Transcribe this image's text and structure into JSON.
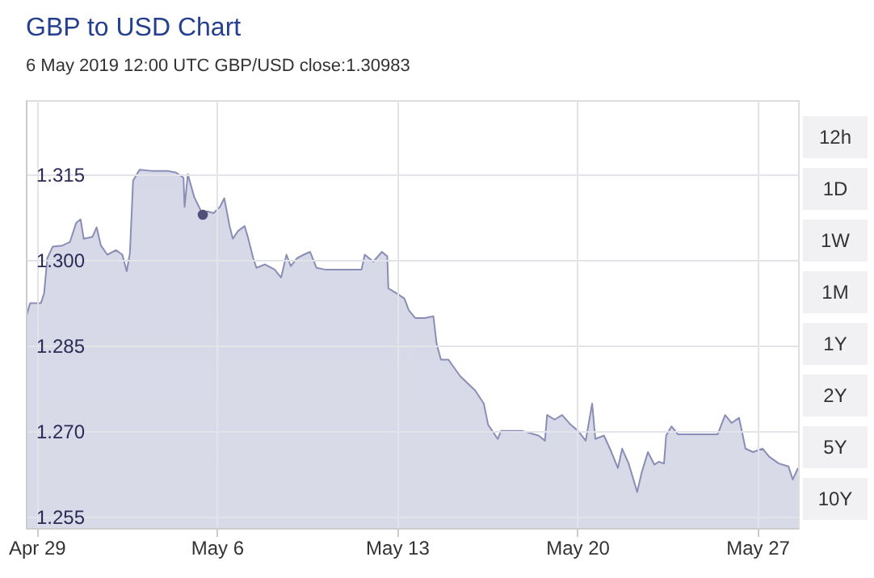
{
  "chart_data": {
    "type": "area",
    "title": "GBP to USD Chart",
    "subtitle": "6 May 2019 12:00 UTC    GBP/USD close:1.30983",
    "annotations": [
      "12h",
      "1D",
      "1W",
      "1M",
      "1Y",
      "2Y",
      "5Y",
      "10Y"
    ],
    "xlim": [
      "2019-04-28T14:00",
      "2019-05-28T14:00"
    ],
    "xticks": [
      {
        "value": "2019-04-29",
        "label": "Apr 29"
      },
      {
        "value": "2019-05-06",
        "label": "May 6"
      },
      {
        "value": "2019-05-13",
        "label": "May 13"
      },
      {
        "value": "2019-05-20",
        "label": "May 20"
      },
      {
        "value": "2019-05-27",
        "label": "May 27"
      }
    ],
    "ylim": [
      1.253,
      1.328
    ],
    "yticks": [
      1.255,
      {
        "value": 1.27,
        "label": "1.270"
      },
      1.285,
      {
        "value": 1.3,
        "label": "1.300"
      },
      1.315
    ],
    "grid": true,
    "series": [
      {
        "color": "#8a8db5",
        "x": [
          "2019-04-28T14:00",
          "2019-04-28T18:00",
          "2019-04-29T04:00",
          "2019-04-29T07:00",
          "2019-04-29T10:00",
          "2019-04-29T15:00",
          "2019-04-30T00:00",
          "2019-04-30T07:00",
          "2019-04-30T13:00",
          "2019-04-30T17:00",
          "2019-04-30T20:00",
          "2019-05-01T04:00",
          "2019-05-01T08:00",
          "2019-05-01T12:00",
          "2019-05-01T18:00",
          "2019-05-02T02:00",
          "2019-05-02T08:00",
          "2019-05-02T12:00",
          "2019-05-02T15:00",
          "2019-05-02T18:00",
          "2019-05-03T00:00",
          "2019-05-03T11:00",
          "2019-05-04T02:00",
          "2019-05-04T10:00",
          "2019-05-04T17:00",
          "2019-05-04T18:00",
          "2019-05-04T21:00",
          "2019-05-05T03:00",
          "2019-05-05T11:00",
          "2019-05-05T15:00",
          "2019-05-05T21:00",
          "2019-05-06T03:00",
          "2019-05-06T07:00",
          "2019-05-06T12:00",
          "2019-05-06T15:00",
          "2019-05-06T20:00",
          "2019-05-07T02:00",
          "2019-05-07T05:00",
          "2019-05-07T10:00",
          "2019-05-07T13:00",
          "2019-05-07T21:00",
          "2019-05-08T06:00",
          "2019-05-08T12:00",
          "2019-05-08T17:00",
          "2019-05-08T21:00",
          "2019-05-09T03:00",
          "2019-05-09T09:00",
          "2019-05-09T15:00",
          "2019-05-09T21:00",
          "2019-05-10T05:00",
          "2019-05-10T20:00",
          "2019-05-11T15:00",
          "2019-05-11T18:00",
          "2019-05-12T02:00",
          "2019-05-12T10:00",
          "2019-05-12T15:00",
          "2019-05-12T16:00",
          "2019-05-13T00:00",
          "2019-05-13T07:00",
          "2019-05-13T11:00",
          "2019-05-13T17:00",
          "2019-05-14T02:00",
          "2019-05-14T10:00",
          "2019-05-14T13:00",
          "2019-05-14T17:00",
          "2019-05-15T00:00",
          "2019-05-15T11:00",
          "2019-05-16T01:00",
          "2019-05-16T09:00",
          "2019-05-16T13:00",
          "2019-05-16T22:00",
          "2019-05-17T01:00",
          "2019-05-17T21:00",
          "2019-05-18T12:00",
          "2019-05-18T18:00",
          "2019-05-18T20:00",
          "2019-05-19T03:00",
          "2019-05-19T10:00",
          "2019-05-19T18:00",
          "2019-05-20T01:00",
          "2019-05-20T08:00",
          "2019-05-20T14:00",
          "2019-05-20T17:00",
          "2019-05-21T01:00",
          "2019-05-21T08:00",
          "2019-05-21T14:00",
          "2019-05-21T18:00",
          "2019-05-22T00:00",
          "2019-05-22T08:00",
          "2019-05-22T12:00",
          "2019-05-22T18:00",
          "2019-05-23T00:00",
          "2019-05-23T04:00",
          "2019-05-23T09:00",
          "2019-05-23T11:00",
          "2019-05-23T16:00",
          "2019-05-23T22:00",
          "2019-05-25T11:00",
          "2019-05-25T18:00",
          "2019-05-26T00:00",
          "2019-05-26T07:00",
          "2019-05-26T13:00",
          "2019-05-26T20:00",
          "2019-05-27T05:00",
          "2019-05-27T11:00",
          "2019-05-27T20:00",
          "2019-05-28T05:00",
          "2019-05-28T09:00",
          "2019-05-28T14:00"
        ],
        "values": [
          1.2898,
          1.2924,
          1.2924,
          1.2941,
          1.3003,
          1.3023,
          1.3025,
          1.3031,
          1.3065,
          1.3071,
          1.3037,
          1.304,
          1.3057,
          1.3025,
          1.3009,
          1.3017,
          1.3009,
          1.298,
          1.3011,
          1.3139,
          1.3158,
          1.3156,
          1.3156,
          1.3153,
          1.3144,
          1.3093,
          1.315,
          1.311,
          1.3079,
          1.3085,
          1.3082,
          1.3093,
          1.3108,
          1.3059,
          1.3037,
          1.3051,
          1.3059,
          1.304,
          1.3003,
          1.2986,
          1.2992,
          1.2983,
          1.2969,
          1.3009,
          1.2989,
          1.3003,
          1.3009,
          1.3014,
          1.2986,
          1.2983,
          1.2983,
          1.2983,
          1.3009,
          1.2997,
          1.3014,
          1.3006,
          1.295,
          1.2941,
          1.2932,
          1.2912,
          1.2898,
          1.2898,
          1.2901,
          1.2853,
          1.2825,
          1.2825,
          1.2796,
          1.2771,
          1.2748,
          1.2711,
          1.2686,
          1.27,
          1.27,
          1.2692,
          1.2683,
          1.2728,
          1.272,
          1.2728,
          1.2711,
          1.27,
          1.2683,
          1.2748,
          1.2686,
          1.2692,
          1.2663,
          1.2635,
          1.2669,
          1.2643,
          1.2593,
          1.2626,
          1.2663,
          1.2641,
          1.2646,
          1.2643,
          1.2692,
          1.2708,
          1.2694,
          1.2694,
          1.2728,
          1.2714,
          1.2723,
          1.2669,
          1.2663,
          1.2669,
          1.2655,
          1.2643,
          1.2638,
          1.2615,
          1.2635
        ]
      },
      {
        "type": "scatter",
        "color": "#50507a",
        "x": [
          "2019-05-05T11:00"
        ],
        "values": [
          1.3079
        ]
      }
    ]
  }
}
